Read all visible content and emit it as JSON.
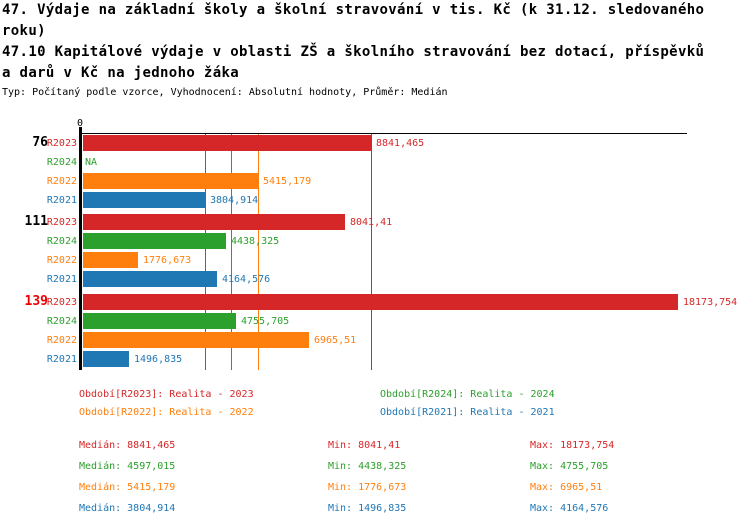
{
  "report": {
    "title1_lines": [
      "47. Výdaje na základní školy a školní stravování v tis. Kč (k 31.12. sledovaného",
      "roku)"
    ],
    "title2_lines": [
      "47.10 Kapitálové výdaje v oblasti ZŠ a školního stravování bez dotací, příspěvků",
      "a darů v Kč na jednoho žáka"
    ],
    "subtitle": "Typ: Počítaný podle vzorce, Vyhodnocení: Absolutní hodnoty, Průměr: Medián"
  },
  "colors": {
    "R2023": "#d62728",
    "R2024": "#2ca02c",
    "R2022": "#ff7f0e",
    "R2021": "#1f77b4",
    "axis": "#000000",
    "flagged_group_label": "#ee0000"
  },
  "chart_data": {
    "type": "bar",
    "orientation": "horizontal",
    "title": "47.10 Kapitálové výdaje v oblasti ZŠ a školního stravování bez dotací, příspěvků a darů v Kč na jednoho žáka",
    "x_axis": {
      "origin_tick_label": "0",
      "max_estimate": 18450,
      "gridlines": "vertical median line per series"
    },
    "categories": [
      "76",
      "111",
      "139"
    ],
    "series_names": [
      "R2023",
      "R2024",
      "R2022",
      "R2021"
    ],
    "groups": [
      {
        "label": "76",
        "label_color": "#000000",
        "bars": [
          {
            "series": "R2023",
            "value": 8841.465,
            "display": "8841,465"
          },
          {
            "series": "R2024",
            "value": null,
            "display": "NA"
          },
          {
            "series": "R2022",
            "value": 5415.179,
            "display": "5415,179"
          },
          {
            "series": "R2021",
            "value": 3804.914,
            "display": "3804,914"
          }
        ]
      },
      {
        "label": "111",
        "label_color": "#000000",
        "bars": [
          {
            "series": "R2023",
            "value": 8041.41,
            "display": "8041,41"
          },
          {
            "series": "R2024",
            "value": 4438.325,
            "display": "4438,325"
          },
          {
            "series": "R2022",
            "value": 1776.673,
            "display": "1776,673"
          },
          {
            "series": "R2021",
            "value": 4164.576,
            "display": "4164,576"
          }
        ]
      },
      {
        "label": "139",
        "label_color": "#ee0000",
        "bars": [
          {
            "series": "R2023",
            "value": 18173.754,
            "display": "18173,754"
          },
          {
            "series": "R2024",
            "value": 4755.705,
            "display": "4755,705"
          },
          {
            "series": "R2022",
            "value": 6965.51,
            "display": "6965,51"
          },
          {
            "series": "R2021",
            "value": 1496.835,
            "display": "1496,835"
          }
        ]
      }
    ],
    "median_lines": [
      {
        "series": "R2021",
        "value": 3804.914
      },
      {
        "series": "R2024",
        "value": 4597.015
      },
      {
        "series": "R2022",
        "value": 5415.179
      },
      {
        "series": "R2023",
        "value": 8841.465
      }
    ],
    "legend": [
      {
        "series": "R2023",
        "label": "Období[R2023]: Realita - 2023"
      },
      {
        "series": "R2024",
        "label": "Období[R2024]: Realita - 2024"
      },
      {
        "series": "R2022",
        "label": "Období[R2022]: Realita - 2022"
      },
      {
        "series": "R2021",
        "label": "Období[R2021]: Realita - 2021"
      }
    ],
    "stats": [
      {
        "series": "R2023",
        "cells": [
          "Medián: 8841,465",
          "Min: 8041,41",
          "Max: 18173,754"
        ]
      },
      {
        "series": "R2024",
        "cells": [
          "Medián: 4597,015",
          "Min: 4438,325",
          "Max: 4755,705"
        ]
      },
      {
        "series": "R2022",
        "cells": [
          "Medián: 5415,179",
          "Min: 1776,673",
          "Max: 6965,51"
        ]
      },
      {
        "series": "R2021",
        "cells": [
          "Medián: 3804,914",
          "Min: 1496,835",
          "Max: 4164,576"
        ]
      }
    ]
  }
}
